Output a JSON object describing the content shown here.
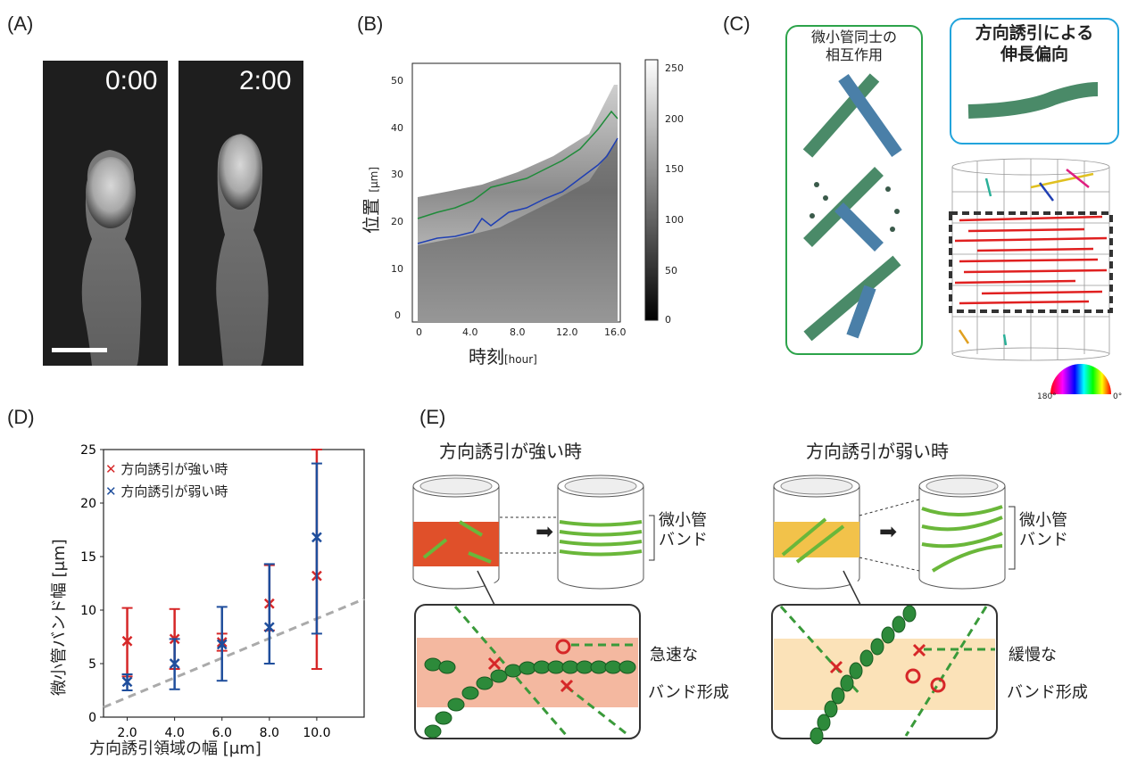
{
  "panels": {
    "A": "(A)",
    "B": "(B)",
    "C": "(C)",
    "D": "(D)",
    "E": "(E)"
  },
  "panel_a": {
    "time1": "0:00",
    "time2": "2:00"
  },
  "panel_b": {
    "ylabel": "位置",
    "yunit": "[μm]",
    "xlabel": "時刻",
    "xunit": "[hour]",
    "yticks": [
      "0",
      "10",
      "20",
      "30",
      "40",
      "50"
    ],
    "xticks": [
      "0",
      "4.0",
      "8.0",
      "12.0",
      "16.0"
    ],
    "cbar_ticks": [
      "0",
      "50",
      "100",
      "150",
      "200",
      "250"
    ]
  },
  "panel_c": {
    "box1": "微小管同士の\n相互作用",
    "box2": "方向誘引による\n伸長偏向",
    "angle_left": "180°",
    "angle_right": "0°"
  },
  "panel_e": {
    "strong_title": "方向誘引が強い時",
    "weak_title": "方向誘引が弱い時",
    "band_label": "微小管\nバンド",
    "fast": "急速な",
    "slow": "緩慢な",
    "band_formation": "バンド形成"
  },
  "chart_data": {
    "type": "scatter",
    "xlabel": "方向誘引領域の幅 [μm]",
    "ylabel": "微小管バンド幅 [μm]",
    "xlim": [
      1,
      12
    ],
    "ylim": [
      0,
      25
    ],
    "xticks": [
      "2.0",
      "4.0",
      "6.0",
      "8.0",
      "10.0"
    ],
    "yticks": [
      "0",
      "5",
      "10",
      "15",
      "20",
      "25"
    ],
    "legend": "top-left",
    "series": [
      {
        "name": "方向誘引が強い時",
        "color": "#d62728",
        "x": [
          2,
          4,
          6,
          8,
          10
        ],
        "y": [
          7.1,
          7.3,
          7.0,
          10.6,
          13.2
        ],
        "err_lo": [
          3.8,
          4.5,
          6.2,
          8.1,
          4.5
        ],
        "err_hi": [
          10.2,
          10.1,
          7.8,
          14.2,
          25
        ]
      },
      {
        "name": "方向誘引が弱い時",
        "color": "#1f4e9c",
        "x": [
          2,
          4,
          6,
          8,
          10
        ],
        "y": [
          3.3,
          5.0,
          6.8,
          8.4,
          16.8
        ],
        "err_lo": [
          2.5,
          2.6,
          3.4,
          5.0,
          7.8
        ],
        "err_hi": [
          4.0,
          7.3,
          10.3,
          14.3,
          23.7
        ]
      }
    ],
    "reference_line": {
      "style": "dashed",
      "slope": 0.92,
      "intercept": 0
    }
  }
}
